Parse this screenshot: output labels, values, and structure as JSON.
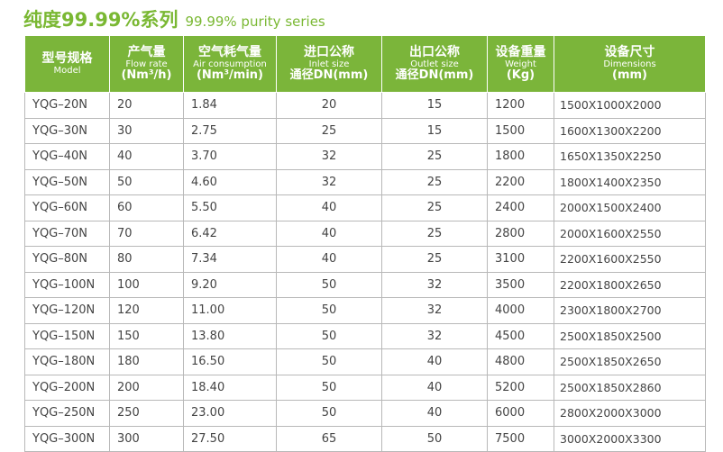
{
  "title": {
    "cn": "纯度99.99%系列",
    "en": "99.99% purity series"
  },
  "columns": [
    {
      "cn": "型号规格",
      "en": "Model",
      "unit": ""
    },
    {
      "cn": "产气量",
      "en": "Flow rate",
      "unit": "(Nm³/h)"
    },
    {
      "cn": "空气耗气量",
      "en": "Air consumption",
      "unit": "(Nm³/min)"
    },
    {
      "cn": "进口公称",
      "en": "Inlet size",
      "unit": "通径DN(mm)"
    },
    {
      "cn": "出口公称",
      "en": "Outlet size",
      "unit": "通径DN(mm)"
    },
    {
      "cn": "设备重量",
      "en": "Weight",
      "unit": "(Kg)"
    },
    {
      "cn": "设备尺寸",
      "en": "Dimensions",
      "unit": "(mm)"
    }
  ],
  "rows": [
    [
      "YQG–20N",
      "20",
      "1.84",
      "20",
      "15",
      "1200",
      "1500X1000X2000"
    ],
    [
      "YQG–30N",
      "30",
      "2.75",
      "25",
      "15",
      "1500",
      "1600X1300X2200"
    ],
    [
      "YQG–40N",
      "40",
      "3.70",
      "32",
      "25",
      "1800",
      "1650X1350X2250"
    ],
    [
      "YQG–50N",
      "50",
      "4.60",
      "32",
      "25",
      "2200",
      "1800X1400X2350"
    ],
    [
      "YQG–60N",
      "60",
      "5.50",
      "40",
      "25",
      "2400",
      "2000X1500X2400"
    ],
    [
      "YQG–70N",
      "70",
      "6.42",
      "40",
      "25",
      "2800",
      "2000X1600X2550"
    ],
    [
      "YQG–80N",
      "80",
      "7.34",
      "40",
      "25",
      "3100",
      "2200X1600X2550"
    ],
    [
      "YQG–100N",
      "100",
      "9.20",
      "50",
      "32",
      "3500",
      "2200X1800X2650"
    ],
    [
      "YQG–120N",
      "120",
      "11.00",
      "50",
      "32",
      "4000",
      "2300X1800X2700"
    ],
    [
      "YQG–150N",
      "150",
      "13.80",
      "50",
      "32",
      "4500",
      "2500X1850X2500"
    ],
    [
      "YQG–180N",
      "180",
      "16.50",
      "50",
      "40",
      "4800",
      "2500X1850X2650"
    ],
    [
      "YQG–200N",
      "200",
      "18.40",
      "50",
      "40",
      "5200",
      "2500X1850X2860"
    ],
    [
      "YQG–250N",
      "250",
      "23.00",
      "50",
      "40",
      "6000",
      "2800X2000X3000"
    ],
    [
      "YQG–300N",
      "300",
      "27.50",
      "65",
      "50",
      "7500",
      "3000X2000X3300"
    ]
  ]
}
